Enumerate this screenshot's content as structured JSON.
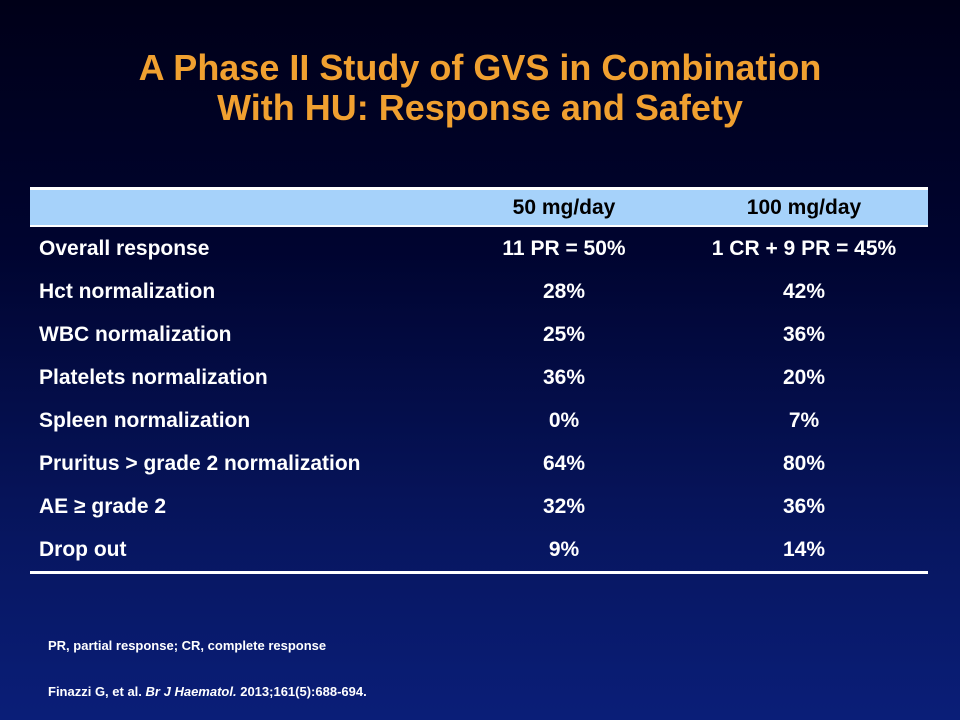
{
  "slide": {
    "title_line1": "A Phase II Study of GVS in Combination",
    "title_line2": "With HU: Response and Safety"
  },
  "table": {
    "headers": [
      "",
      "50 mg/day",
      "100 mg/day"
    ],
    "rows": [
      [
        "Overall response",
        "11 PR = 50%",
        "1 CR + 9 PR = 45%"
      ],
      [
        "Hct normalization",
        "28%",
        "42%"
      ],
      [
        "WBC normalization",
        "25%",
        "36%"
      ],
      [
        "Platelets normalization",
        "36%",
        "20%"
      ],
      [
        "Spleen normalization",
        "0%",
        "7%"
      ],
      [
        "Pruritus > grade 2 normalization",
        "64%",
        "80%"
      ],
      [
        "AE ≥ grade 2",
        "32%",
        "36%"
      ],
      [
        "Drop out",
        "9%",
        "14%"
      ]
    ]
  },
  "footnote": "PR, partial response; CR, complete response",
  "citation": {
    "authors": "Finazzi G, et al.",
    "journal": "Br J Haematol.",
    "details": "2013;161(5):688-694."
  },
  "colors": {
    "title": "#f0a030",
    "header_band": "#a6d2fa",
    "background_top": "#000018",
    "background_bottom": "#0a1e78"
  }
}
